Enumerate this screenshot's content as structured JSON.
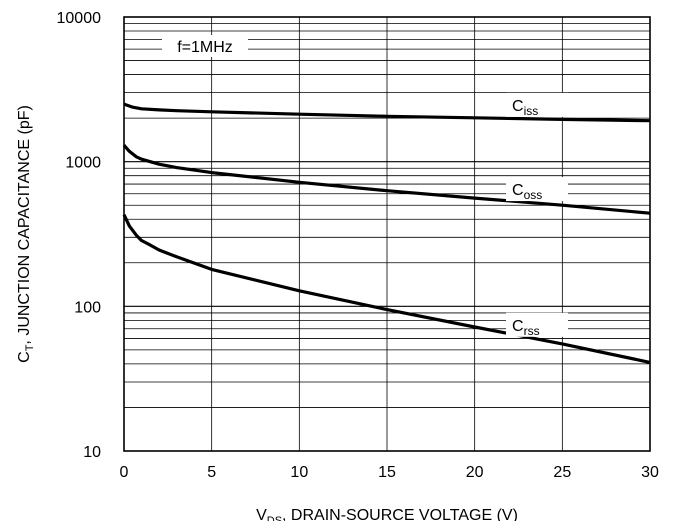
{
  "chart_data": {
    "type": "line",
    "annotation": "f=1MHz",
    "xlabel": {
      "main": "V",
      "sub": "DS",
      "rest": ", DRAIN-SOURCE VOLTAGE (V)"
    },
    "ylabel": {
      "main": "C",
      "sub": "T",
      "rest": ", JUNCTION CAPACITANCE (pF)"
    },
    "xlim": [
      0,
      30
    ],
    "ylim": [
      10,
      10000
    ],
    "yscale": "log",
    "grid": true,
    "x_ticks": [
      0,
      5,
      10,
      15,
      20,
      25,
      30
    ],
    "x_tick_labels": [
      "0",
      "5",
      "10",
      "15",
      "20",
      "25",
      "30"
    ],
    "y_ticks": [
      10,
      100,
      1000,
      10000
    ],
    "y_tick_labels": [
      "10",
      "100",
      "1000",
      "10000"
    ],
    "series": [
      {
        "name": "Ciss",
        "label_main": "C",
        "label_sub": "iss",
        "label_x": 23.5,
        "x": [
          0,
          0.5,
          1,
          2,
          3,
          5,
          10,
          15,
          20,
          25,
          30
        ],
        "y": [
          2500,
          2380,
          2320,
          2280,
          2250,
          2210,
          2130,
          2060,
          2010,
          1960,
          1920
        ]
      },
      {
        "name": "Coss",
        "label_main": "C",
        "label_sub": "oss",
        "label_x": 23.5,
        "x": [
          0,
          0.3,
          0.7,
          1,
          1.5,
          2,
          3,
          5,
          10,
          15,
          20,
          25,
          30
        ],
        "y": [
          1300,
          1180,
          1080,
          1040,
          1000,
          960,
          910,
          840,
          720,
          630,
          560,
          500,
          440
        ]
      },
      {
        "name": "Crss",
        "label_main": "C",
        "label_sub": "rss",
        "label_x": 23.5,
        "x": [
          0,
          0.3,
          0.7,
          1,
          1.5,
          2,
          3,
          5,
          10,
          15,
          20,
          25,
          30
        ],
        "y": [
          430,
          360,
          310,
          285,
          265,
          245,
          220,
          180,
          128,
          95,
          72,
          55,
          41
        ]
      }
    ]
  }
}
